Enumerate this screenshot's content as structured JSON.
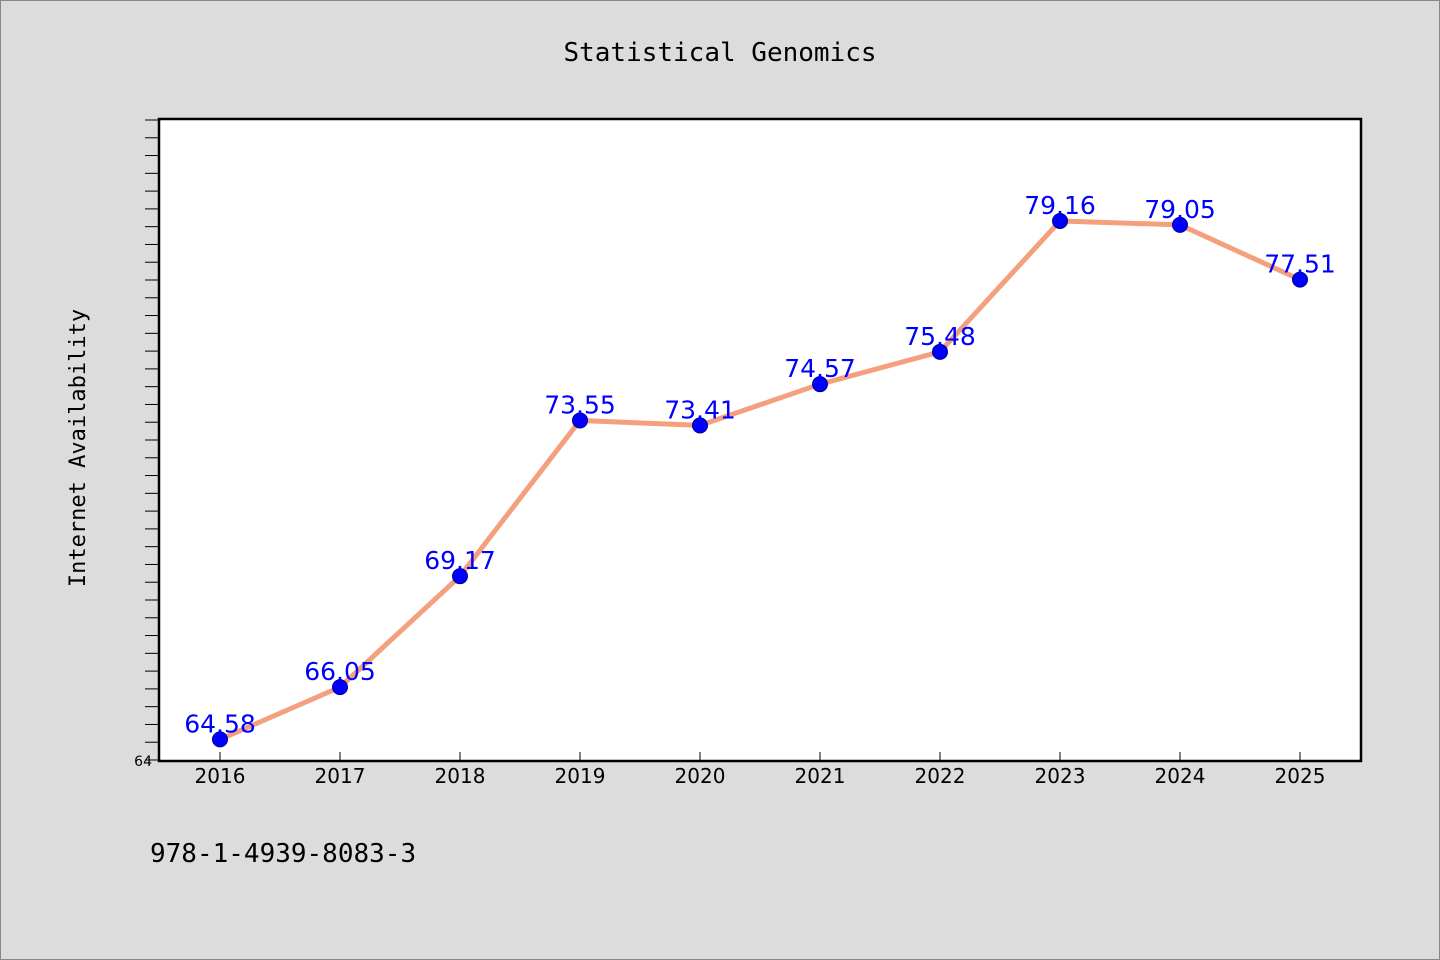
{
  "chart_data": {
    "type": "line",
    "title": "Statistical Genomics",
    "xlabel": "",
    "ylabel": "Internet Availability",
    "categories": [
      "2016",
      "2017",
      "2018",
      "2019",
      "2020",
      "2021",
      "2022",
      "2023",
      "2024",
      "2025"
    ],
    "series": [
      {
        "values": [
          64.58,
          66.05,
          69.17,
          73.55,
          73.41,
          74.57,
          75.48,
          79.16,
          79.05,
          77.51
        ],
        "data_labels": [
          "64.58",
          "66.05",
          "69.17",
          "73.55",
          "73.41",
          "74.57",
          "75.48",
          "79.16",
          "79.05",
          "77.51"
        ]
      }
    ],
    "ylim": [
      64,
      82
    ],
    "yticks_labeled": [
      "64"
    ],
    "grid": false,
    "legend": "none",
    "colors": {
      "line": "#f4a07e",
      "marker": "#0000ff",
      "data_label": "#0000ff",
      "plot_background": "#ffffff",
      "page_background": "#dcdcdc"
    }
  },
  "footnote": "978-1-4939-8083-3"
}
